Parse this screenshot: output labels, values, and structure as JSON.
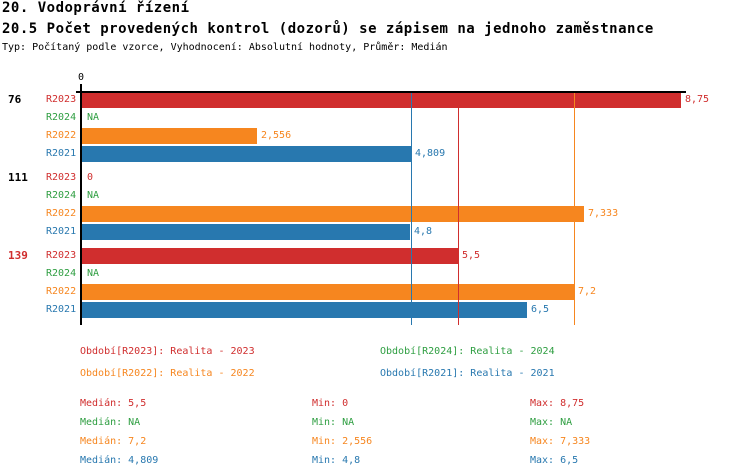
{
  "header": {
    "title": "20. Vodoprávní řízení",
    "subtitle": "20.5 Počet provedených kontrol (dozorů) se zápisem na jednoho zaměstnance",
    "meta": "Typ: Počítaný podle vzorce, Vyhodnocení: Absolutní hodnoty, Průměr: Medián"
  },
  "colors": {
    "R2023": "#d02e2e",
    "R2024": "#2e9e41",
    "R2022": "#f6861f",
    "R2021": "#2878af",
    "axis": "#000000",
    "group_label_default": "#000000",
    "group_label_highlight": "#d02e2e"
  },
  "chart_data": {
    "type": "bar",
    "orientation": "horizontal",
    "value_axis": {
      "min": 0,
      "max": 8.75,
      "tick_labels": [
        "0"
      ],
      "grid": false
    },
    "series_order": [
      "R2023",
      "R2024",
      "R2022",
      "R2021"
    ],
    "groups": [
      {
        "label": "76",
        "label_color": "#000000",
        "values": [
          {
            "series": "R2023",
            "value": 8.75,
            "display": "8,75"
          },
          {
            "series": "R2024",
            "value": null,
            "display": "NA"
          },
          {
            "series": "R2022",
            "value": 2.556,
            "display": "2,556"
          },
          {
            "series": "R2021",
            "value": 4.809,
            "display": "4,809"
          }
        ]
      },
      {
        "label": "111",
        "label_color": "#000000",
        "values": [
          {
            "series": "R2023",
            "value": 0,
            "display": "0"
          },
          {
            "series": "R2024",
            "value": null,
            "display": "NA"
          },
          {
            "series": "R2022",
            "value": 7.333,
            "display": "7,333"
          },
          {
            "series": "R2021",
            "value": 4.8,
            "display": "4,8"
          }
        ]
      },
      {
        "label": "139",
        "label_color": "#d02e2e",
        "values": [
          {
            "series": "R2023",
            "value": 5.5,
            "display": "5,5"
          },
          {
            "series": "R2024",
            "value": null,
            "display": "NA"
          },
          {
            "series": "R2022",
            "value": 7.2,
            "display": "7,2"
          },
          {
            "series": "R2021",
            "value": 6.5,
            "display": "6,5"
          }
        ]
      }
    ],
    "median_lines": [
      {
        "series": "R2023",
        "value": 5.5
      },
      {
        "series": "R2022",
        "value": 7.2
      },
      {
        "series": "R2021",
        "value": 4.809
      }
    ]
  },
  "legend": {
    "items": [
      {
        "series": "R2023",
        "label": "Období[R2023]: Realita - 2023",
        "col": 0,
        "row": 0
      },
      {
        "series": "R2024",
        "label": "Období[R2024]: Realita - 2024",
        "col": 1,
        "row": 0
      },
      {
        "series": "R2022",
        "label": "Období[R2022]: Realita - 2022",
        "col": 0,
        "row": 1
      },
      {
        "series": "R2021",
        "label": "Období[R2021]: Realita - 2021",
        "col": 1,
        "row": 1
      }
    ]
  },
  "stats": {
    "median_label": "Medián",
    "min_label": "Min",
    "max_label": "Max",
    "rows": [
      {
        "series": "R2023",
        "median": "5,5",
        "min": "0",
        "max": "8,75"
      },
      {
        "series": "R2024",
        "median": "NA",
        "min": "NA",
        "max": "NA"
      },
      {
        "series": "R2022",
        "median": "7,2",
        "min": "2,556",
        "max": "7,333"
      },
      {
        "series": "R2021",
        "median": "4,809",
        "min": "4,8",
        "max": "6,5"
      }
    ]
  }
}
